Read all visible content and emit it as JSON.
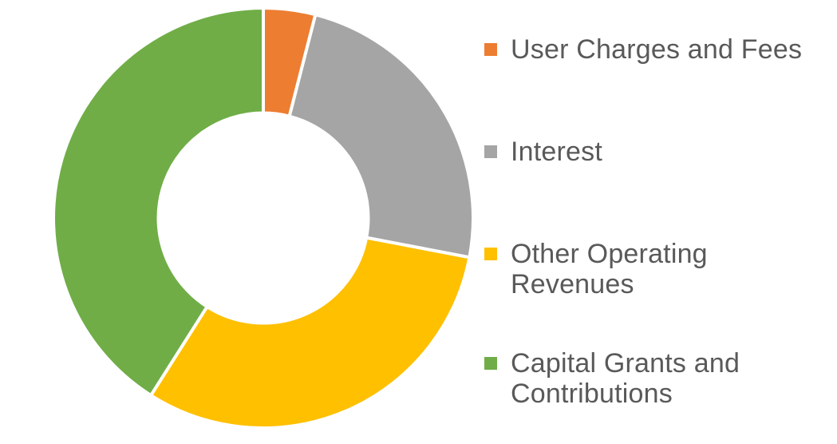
{
  "chart_data": {
    "type": "pie",
    "subtype": "donut",
    "title": "",
    "legend_position": "right",
    "start_angle_deg": 0,
    "hole_ratio": 0.5,
    "slice_border_color": "#FFFFFF",
    "background_color": "#FFFFFF",
    "series": [
      {
        "label": "User Charges and Fees",
        "value": 4,
        "color": "#ED7D31"
      },
      {
        "label": "Interest",
        "value": 24,
        "color": "#A5A5A5"
      },
      {
        "label": "Other Operating Revenues",
        "value": 31,
        "color": "#FFC000"
      },
      {
        "label": "Capital Grants and Contributions",
        "value": 41,
        "color": "#70AD47"
      }
    ],
    "unit": "percent_estimated_from_arc_angles"
  },
  "legend": {
    "text_color": "#595959"
  }
}
